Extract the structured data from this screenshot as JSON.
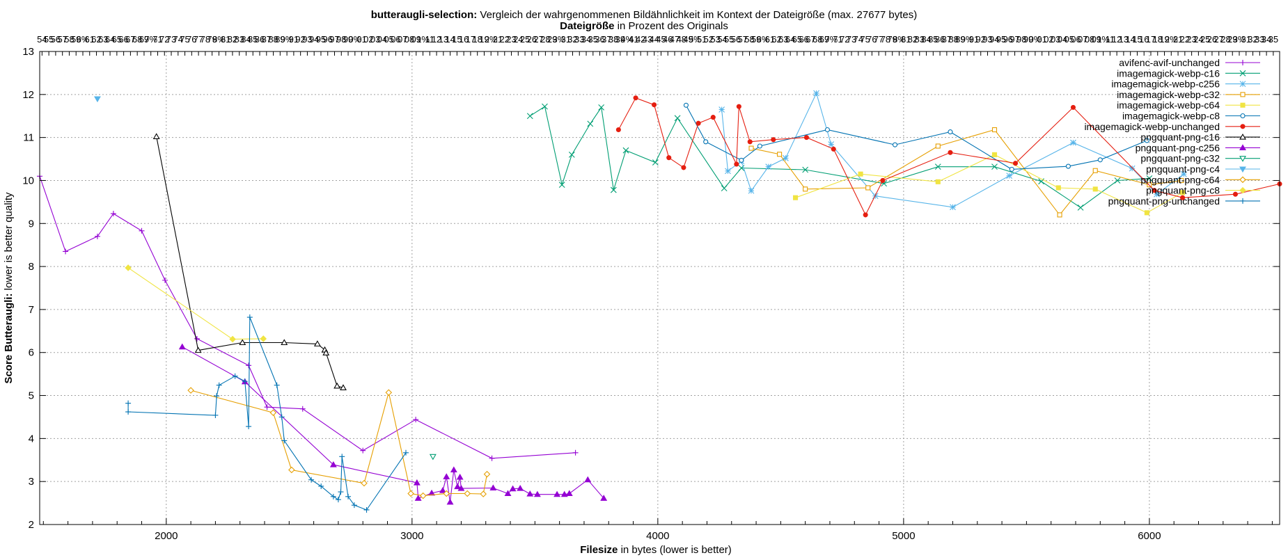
{
  "chart_data": {
    "type": "line",
    "title": {
      "bold": "butteraugli-selection:",
      "rest": " Vergleich der wahrgenommenen Bildähnlichkeit im Kontext der Dateigröße (max. 27677 bytes)"
    },
    "subtitle": {
      "bold": "Dateigröße",
      "rest": " in Prozent des Originals"
    },
    "xlabel": {
      "bold": "Filesize",
      "rest": " in bytes (lower is better)"
    },
    "ylabel": {
      "bold": "Score Butteraugli:",
      "rest": " lower is better quality"
    },
    "xlim": [
      1485,
      6530
    ],
    "ylim": [
      2,
      13
    ],
    "x_ticks": [
      2000,
      3000,
      4000,
      5000,
      6000
    ],
    "y_ticks": [
      2,
      3,
      4,
      5,
      6,
      7,
      8,
      9,
      10,
      11,
      12,
      13
    ],
    "x2_percent_labels": true,
    "x2_percent_start": 5,
    "x2_percent_end": 24,
    "grid": true,
    "legend_position": "top-right",
    "series": [
      {
        "name": "avifenc-avif-unchanged",
        "color": "#9400d3",
        "marker": "plus",
        "points": [
          [
            1485,
            10.1
          ],
          [
            1590,
            8.35
          ],
          [
            1720,
            8.7
          ],
          [
            1785,
            9.23
          ],
          [
            1900,
            8.83
          ],
          [
            1995,
            7.68
          ],
          [
            2125,
            6.32
          ],
          [
            2335,
            5.7
          ],
          [
            2410,
            4.73
          ],
          [
            2555,
            4.69
          ],
          [
            2800,
            3.72
          ],
          [
            3015,
            4.44
          ],
          [
            3325,
            3.54
          ],
          [
            3665,
            3.67
          ]
        ]
      },
      {
        "name": "imagemagick-webp-c16",
        "color": "#009e73",
        "marker": "x",
        "points": [
          [
            3480,
            11.5
          ],
          [
            3540,
            11.72
          ],
          [
            3610,
            9.9
          ],
          [
            3650,
            10.6
          ],
          [
            3725,
            11.32
          ],
          [
            3770,
            11.7
          ],
          [
            3820,
            9.78
          ],
          [
            3870,
            10.7
          ],
          [
            3990,
            10.42
          ],
          [
            4080,
            11.45
          ],
          [
            4270,
            9.82
          ],
          [
            4340,
            10.29
          ],
          [
            4600,
            10.25
          ],
          [
            4920,
            9.93
          ],
          [
            5140,
            10.32
          ],
          [
            5370,
            10.32
          ],
          [
            5560,
            9.98
          ],
          [
            5720,
            9.37
          ],
          [
            5870,
            10.0
          ],
          [
            6000,
            10.05
          ]
        ]
      },
      {
        "name": "imagemagick-webp-c256",
        "color": "#56b4e9",
        "marker": "star",
        "points": [
          [
            4260,
            11.65
          ],
          [
            4285,
            10.22
          ],
          [
            4340,
            10.45
          ],
          [
            4380,
            9.76
          ],
          [
            4450,
            10.32
          ],
          [
            4520,
            10.52
          ],
          [
            4645,
            12.03
          ],
          [
            4705,
            10.84
          ],
          [
            4885,
            9.64
          ],
          [
            5200,
            9.38
          ],
          [
            5430,
            10.11
          ],
          [
            5690,
            10.88
          ],
          [
            5930,
            10.28
          ],
          [
            6030,
            9.68
          ],
          [
            6140,
            10.15
          ]
        ]
      },
      {
        "name": "imagemagick-webp-c32",
        "color": "#e69f00",
        "marker": "square",
        "points": [
          [
            4380,
            10.75
          ],
          [
            4495,
            10.61
          ],
          [
            4600,
            9.8
          ],
          [
            4855,
            9.83
          ],
          [
            5140,
            10.8
          ],
          [
            5370,
            11.18
          ],
          [
            5635,
            9.2
          ],
          [
            5780,
            10.23
          ],
          [
            6000,
            9.9
          ],
          [
            6130,
            10.0
          ]
        ]
      },
      {
        "name": "imagemagick-webp-c64",
        "color": "#f0e442",
        "marker": "filled-square",
        "points": [
          [
            4560,
            9.6
          ],
          [
            4825,
            10.15
          ],
          [
            5140,
            9.97
          ],
          [
            5370,
            10.6
          ],
          [
            5630,
            9.83
          ],
          [
            5780,
            9.8
          ],
          [
            5990,
            9.25
          ],
          [
            6135,
            9.72
          ]
        ]
      },
      {
        "name": "imagemagick-webp-c8",
        "color": "#0072b2",
        "marker": "circle",
        "points": [
          [
            4115,
            11.75
          ],
          [
            4195,
            10.9
          ],
          [
            4340,
            10.47
          ],
          [
            4415,
            10.8
          ],
          [
            4690,
            11.18
          ],
          [
            4965,
            10.83
          ],
          [
            5190,
            11.13
          ],
          [
            5440,
            10.26
          ],
          [
            5670,
            10.33
          ],
          [
            5800,
            10.48
          ],
          [
            5990,
            10.93
          ]
        ]
      },
      {
        "name": "imagemagick-webp-unchanged",
        "color": "#e51e10",
        "marker": "filled-circle",
        "points": [
          [
            3840,
            11.18
          ],
          [
            3910,
            11.92
          ],
          [
            3985,
            11.76
          ],
          [
            4045,
            10.53
          ],
          [
            4105,
            10.3
          ],
          [
            4165,
            11.33
          ],
          [
            4225,
            11.47
          ],
          [
            4320,
            10.38
          ],
          [
            4330,
            11.72
          ],
          [
            4375,
            10.9
          ],
          [
            4470,
            10.95
          ],
          [
            4605,
            11.0
          ],
          [
            4715,
            10.73
          ],
          [
            4845,
            9.2
          ],
          [
            4915,
            10.0
          ],
          [
            5190,
            10.65
          ],
          [
            5455,
            10.4
          ],
          [
            5690,
            11.7
          ],
          [
            6020,
            9.77
          ],
          [
            6135,
            9.6
          ],
          [
            6350,
            9.68
          ],
          [
            6530,
            9.92
          ]
        ]
      },
      {
        "name": "pngquant-png-c16",
        "color": "#000000",
        "marker": "triangle",
        "points": [
          [
            1960,
            11.02
          ],
          [
            2130,
            6.05
          ],
          [
            2310,
            6.23
          ],
          [
            2480,
            6.23
          ],
          [
            2615,
            6.2
          ],
          [
            2645,
            6.06
          ],
          [
            2650,
            5.99
          ],
          [
            2695,
            5.22
          ],
          [
            2720,
            5.18
          ]
        ]
      },
      {
        "name": "pngquant-png-c256",
        "color": "#9400d3",
        "marker": "filled-triangle",
        "points": [
          [
            2065,
            6.13
          ],
          [
            2320,
            5.32
          ],
          [
            2680,
            3.39
          ],
          [
            3020,
            2.97
          ],
          [
            3025,
            2.61
          ],
          [
            3080,
            2.73
          ],
          [
            3125,
            2.79
          ],
          [
            3140,
            3.11
          ],
          [
            3155,
            2.52
          ],
          [
            3170,
            3.27
          ],
          [
            3185,
            2.88
          ],
          [
            3195,
            3.1
          ],
          [
            3200,
            2.84
          ],
          [
            3330,
            2.85
          ],
          [
            3390,
            2.72
          ],
          [
            3410,
            2.83
          ],
          [
            3440,
            2.84
          ],
          [
            3480,
            2.71
          ],
          [
            3510,
            2.7
          ],
          [
            3590,
            2.7
          ],
          [
            3620,
            2.7
          ],
          [
            3640,
            2.72
          ],
          [
            3715,
            3.04
          ],
          [
            3780,
            2.61
          ]
        ]
      },
      {
        "name": "pngquant-png-c32",
        "color": "#009e73",
        "marker": "down-triangle",
        "points": [
          [
            3085,
            3.58
          ]
        ]
      },
      {
        "name": "pngquant-png-c4",
        "color": "#56b4e9",
        "marker": "filled-down-triangle",
        "points": [
          [
            1720,
            11.9
          ]
        ]
      },
      {
        "name": "pngquant-png-c64",
        "color": "#e69f00",
        "marker": "diamond",
        "points": [
          [
            2100,
            5.12
          ],
          [
            2435,
            4.6
          ],
          [
            2510,
            3.27
          ],
          [
            2805,
            2.96
          ],
          [
            2905,
            5.07
          ],
          [
            2995,
            2.72
          ],
          [
            3045,
            2.67
          ],
          [
            3140,
            2.72
          ],
          [
            3225,
            2.72
          ],
          [
            3290,
            2.71
          ],
          [
            3305,
            3.17
          ]
        ]
      },
      {
        "name": "pngquant-png-c8",
        "color": "#f0e442",
        "marker": "filled-diamond",
        "points": [
          [
            1845,
            7.97
          ],
          [
            2270,
            6.31
          ],
          [
            2395,
            6.32
          ]
        ]
      },
      {
        "name": "pngquant-png-unchanged",
        "color": "#0072b2",
        "marker": "plus",
        "points": [
          [
            1845,
            4.82
          ],
          [
            1845,
            4.62
          ],
          [
            2200,
            4.54
          ],
          [
            2205,
            4.99
          ],
          [
            2215,
            5.24
          ],
          [
            2280,
            5.45
          ],
          [
            2320,
            5.33
          ],
          [
            2335,
            4.28
          ],
          [
            2340,
            6.82
          ],
          [
            2450,
            5.24
          ],
          [
            2470,
            4.5
          ],
          [
            2480,
            3.95
          ],
          [
            2590,
            3.04
          ],
          [
            2630,
            2.89
          ],
          [
            2680,
            2.65
          ],
          [
            2700,
            2.58
          ],
          [
            2710,
            2.76
          ],
          [
            2715,
            3.58
          ],
          [
            2740,
            2.65
          ],
          [
            2765,
            2.45
          ],
          [
            2815,
            2.34
          ],
          [
            2975,
            3.67
          ]
        ]
      }
    ]
  }
}
